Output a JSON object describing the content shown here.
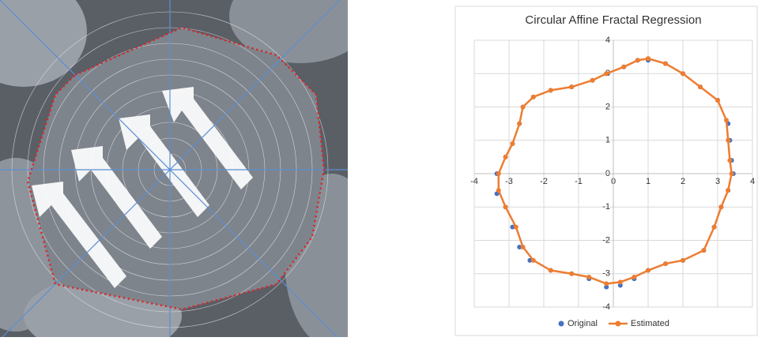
{
  "chart_data": {
    "type": "scatter",
    "title": "Circular Affine Fractal Regression",
    "xlim": [
      -4,
      4
    ],
    "ylim": [
      -4,
      4
    ],
    "xticks": [
      -4,
      -3,
      -2,
      -1,
      0,
      1,
      2,
      3,
      4
    ],
    "yticks": [
      -4,
      -3,
      -2,
      -1,
      0,
      1,
      2,
      3,
      4
    ],
    "grid": true,
    "legend": "bottom",
    "series": [
      {
        "name": "Original",
        "color": "#4472c4",
        "line": false,
        "x": [
          1.0,
          1.5,
          2.0,
          2.5,
          3.0,
          3.3,
          3.35,
          3.4,
          3.45,
          3.3,
          3.1,
          2.9,
          2.6,
          2.0,
          1.5,
          1.0,
          0.6,
          0.2,
          -0.2,
          -0.7,
          -1.2,
          -1.8,
          -2.4,
          -2.7,
          -2.9,
          -3.1,
          -3.35,
          -3.35,
          -3.1,
          -2.9,
          -2.7,
          -2.6,
          -2.3,
          -1.8,
          -1.2,
          -0.6,
          -0.2,
          0.3,
          0.7
        ],
        "y": [
          3.4,
          3.3,
          3.0,
          2.6,
          2.2,
          1.5,
          1.0,
          0.4,
          0.0,
          -0.5,
          -1.0,
          -1.6,
          -2.3,
          -2.6,
          -2.7,
          -2.9,
          -3.15,
          -3.35,
          -3.4,
          -3.15,
          -3.0,
          -2.9,
          -2.6,
          -2.2,
          -1.6,
          -1.0,
          -0.6,
          0.0,
          0.5,
          0.9,
          1.5,
          2.0,
          2.3,
          2.5,
          2.6,
          2.8,
          3.0,
          3.2,
          3.4
        ]
      },
      {
        "name": "Estimated",
        "color": "#ed7d31",
        "line": true,
        "x": [
          1.0,
          1.5,
          2.0,
          2.5,
          3.0,
          3.25,
          3.3,
          3.35,
          3.4,
          3.3,
          3.1,
          2.9,
          2.6,
          2.0,
          1.5,
          1.0,
          0.6,
          0.2,
          -0.2,
          -0.7,
          -1.2,
          -1.8,
          -2.3,
          -2.6,
          -2.8,
          -3.1,
          -3.3,
          -3.3,
          -3.1,
          -2.9,
          -2.7,
          -2.6,
          -2.3,
          -1.8,
          -1.2,
          -0.6,
          -0.2,
          0.3,
          0.7,
          1.0
        ],
        "y": [
          3.45,
          3.3,
          3.0,
          2.6,
          2.2,
          1.6,
          1.0,
          0.4,
          0.0,
          -0.5,
          -1.0,
          -1.6,
          -2.3,
          -2.6,
          -2.7,
          -2.9,
          -3.1,
          -3.25,
          -3.3,
          -3.1,
          -3.0,
          -2.9,
          -2.6,
          -2.2,
          -1.6,
          -1.0,
          -0.5,
          0.0,
          0.5,
          0.9,
          1.5,
          2.0,
          2.3,
          2.5,
          2.6,
          2.8,
          3.0,
          3.2,
          3.4,
          3.45
        ]
      }
    ]
  }
}
